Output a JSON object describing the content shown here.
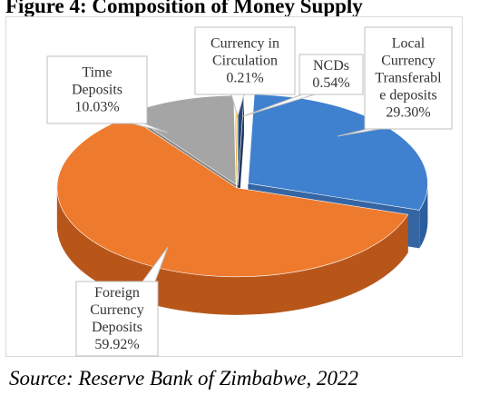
{
  "title": "Figure 4: Composition of Money Supply",
  "source": "Source: Reserve Bank of Zimbabwe, 2022",
  "chart_data": {
    "type": "pie",
    "style": "3d-exploded",
    "title": "",
    "slices": [
      {
        "name": "Local Currency Transferable deposits",
        "value": 29.3,
        "value_label": "29.30%",
        "label_lines": [
          "Local",
          "Currency",
          "Transferabl",
          "e deposits"
        ],
        "color": "#3f80cf",
        "side_color": "#2a5e9e"
      },
      {
        "name": "Foreign Currency Deposits",
        "value": 59.92,
        "value_label": "59.92%",
        "label_lines": [
          "Foreign",
          "Currency",
          "Deposits"
        ],
        "color": "#ee7a2e",
        "side_color": "#b8561a"
      },
      {
        "name": "Time Deposits",
        "value": 10.03,
        "value_label": "10.03%",
        "label_lines": [
          "Time",
          "Deposits"
        ],
        "color": "#a5a5a5",
        "side_color": "#7a7a7a"
      },
      {
        "name": "Currency in Circulation",
        "value": 0.21,
        "value_label": "0.21%",
        "label_lines": [
          "Currency in",
          "Circulation"
        ],
        "color": "#ffc000",
        "side_color": "#c99a00"
      },
      {
        "name": "NCDs",
        "value": 0.54,
        "value_label": "0.54%",
        "label_lines": [
          "NCDs"
        ],
        "color": "#264478",
        "side_color": "#1a2f55"
      }
    ],
    "legend": "none",
    "data_labels": "callouts"
  }
}
